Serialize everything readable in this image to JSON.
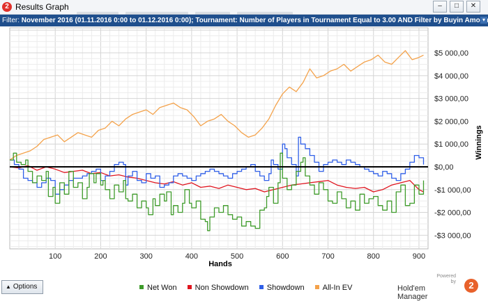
{
  "window": {
    "title": "Results Graph",
    "minimize_glyph": "–",
    "maximize_glyph": "□",
    "close_glyph": "✕"
  },
  "filter": {
    "label": "Filter:",
    "text": "November 2016 (01.11.2016 0:00 to 01.12.2016 0:00); Tournament: Number of Players in Tournament Equal to 3.00 AND Filter by Buyin Amount Greater T..",
    "toggle_glyph": "▾"
  },
  "footer": {
    "options_label": "Options",
    "options_arrow": "▲",
    "powered_by": [
      "Powered",
      "by"
    ],
    "brand_name": "Hold'em Manager",
    "brand_logo_glyph": "2"
  },
  "colors": {
    "net_won": "#3e9b2a",
    "non_showdown": "#e0141e",
    "showdown": "#2f5fe8",
    "all_in_ev": "#f4a24a",
    "title_bar": "#f3f5f8",
    "filter_bar": "#1f4f8d"
  },
  "chart_data": {
    "type": "line",
    "xlabel": "Hands",
    "ylabel": "Winnings",
    "xlim": [
      0,
      920
    ],
    "ylim": [
      -3600,
      6100
    ],
    "xticks": [
      100,
      200,
      300,
      400,
      500,
      600,
      700,
      800,
      900
    ],
    "xtick_labels": [
      "100",
      "200",
      "300",
      "400",
      "500",
      "600",
      "700",
      "800",
      "900"
    ],
    "yticks": [
      5000,
      4000,
      3000,
      2000,
      1000,
      0,
      -1000,
      -2000,
      -3000
    ],
    "ytick_labels": [
      "$5 000,00",
      "$4 000,00",
      "$3 000,00",
      "$2 000,00",
      "$1 000,00",
      "$0,00",
      "-$1 000,00",
      "-$2 000,00",
      "-$3 000,00"
    ],
    "grid": true,
    "y_axis_position": "right",
    "legend_position": "bottom",
    "series": [
      {
        "name": "Net Won",
        "color": "#3e9b2a",
        "step": true,
        "x": [
          0,
          8,
          15,
          25,
          35,
          40,
          50,
          60,
          70,
          80,
          85,
          95,
          100,
          110,
          120,
          130,
          140,
          150,
          160,
          170,
          175,
          185,
          190,
          200,
          205,
          210,
          220,
          230,
          240,
          250,
          255,
          260,
          270,
          280,
          290,
          300,
          305,
          315,
          320,
          330,
          340,
          345,
          355,
          360,
          370,
          380,
          385,
          395,
          400,
          410,
          420,
          430,
          435,
          440,
          450,
          460,
          470,
          480,
          490,
          500,
          510,
          520,
          530,
          540,
          550,
          560,
          565,
          570,
          580,
          590,
          595,
          600,
          610,
          620,
          630,
          640,
          645,
          650,
          660,
          670,
          680,
          690,
          700,
          710,
          720,
          730,
          740,
          750,
          760,
          770,
          780,
          790,
          800,
          810,
          820,
          830,
          840,
          850,
          860,
          870,
          880,
          890,
          900,
          910
        ],
        "y": [
          300,
          600,
          200,
          100,
          300,
          -200,
          -700,
          -400,
          -600,
          -200,
          -1300,
          -900,
          -1600,
          -700,
          -1200,
          -200,
          -900,
          -700,
          -1400,
          -900,
          -300,
          -700,
          -300,
          -800,
          -600,
          -1000,
          -1400,
          -800,
          -1100,
          -600,
          -1400,
          -1500,
          -1200,
          -1800,
          -1500,
          -1800,
          -2100,
          -1400,
          -1700,
          -1200,
          -1500,
          -1100,
          -2100,
          -1700,
          -2000,
          -1600,
          -1000,
          -1600,
          -1800,
          -1500,
          -2300,
          -2400,
          -2800,
          -2200,
          -1800,
          -2000,
          -1700,
          -2100,
          -2300,
          -2200,
          -2600,
          -2400,
          -2600,
          -2700,
          -1900,
          -1800,
          -1300,
          -900,
          -1600,
          -700,
          600,
          -500,
          -1000,
          -800,
          -200,
          200,
          400,
          -400,
          -800,
          -1200,
          -700,
          -1000,
          -1500,
          -1600,
          -1100,
          -1400,
          -1800,
          -1500,
          -1900,
          -1200,
          -1600,
          -1400,
          -1300,
          -1700,
          -1900,
          -1500,
          -2000,
          -1100,
          -800,
          -1700,
          -1600,
          -800,
          -1200,
          -600
        ]
      },
      {
        "name": "Non Showdown",
        "color": "#e0141e",
        "step": false,
        "x": [
          0,
          20,
          40,
          60,
          80,
          100,
          120,
          140,
          160,
          180,
          200,
          220,
          240,
          260,
          280,
          300,
          320,
          340,
          360,
          380,
          400,
          420,
          440,
          460,
          480,
          500,
          520,
          540,
          560,
          580,
          600,
          620,
          640,
          660,
          680,
          700,
          720,
          740,
          760,
          780,
          800,
          820,
          840,
          860,
          880,
          900,
          910
        ],
        "y": [
          0,
          -50,
          50,
          -150,
          0,
          -100,
          -250,
          -200,
          -150,
          -300,
          -250,
          -400,
          -350,
          -450,
          -500,
          -600,
          -700,
          -750,
          -650,
          -800,
          -700,
          -900,
          -850,
          -950,
          -800,
          -900,
          -1000,
          -950,
          -1100,
          -1000,
          -900,
          -800,
          -750,
          -700,
          -650,
          -600,
          -800,
          -900,
          -950,
          -900,
          -1100,
          -1000,
          -800,
          -700,
          -600,
          -1000,
          -1100
        ]
      },
      {
        "name": "Showdown",
        "color": "#2f5fe8",
        "step": true,
        "x": [
          0,
          10,
          20,
          30,
          40,
          50,
          60,
          70,
          80,
          90,
          100,
          110,
          120,
          130,
          140,
          150,
          160,
          170,
          180,
          190,
          200,
          210,
          220,
          230,
          240,
          250,
          255,
          260,
          270,
          280,
          290,
          300,
          310,
          320,
          330,
          340,
          350,
          360,
          370,
          380,
          390,
          400,
          410,
          420,
          430,
          440,
          450,
          460,
          470,
          480,
          490,
          500,
          510,
          520,
          530,
          540,
          550,
          560,
          570,
          575,
          580,
          590,
          600,
          605,
          610,
          620,
          630,
          635,
          640,
          650,
          660,
          670,
          680,
          690,
          700,
          710,
          720,
          730,
          740,
          750,
          760,
          770,
          780,
          790,
          800,
          810,
          820,
          830,
          840,
          850,
          860,
          870,
          880,
          890,
          900,
          910
        ],
        "y": [
          300,
          100,
          -100,
          -500,
          -600,
          -700,
          -900,
          -700,
          -500,
          -600,
          -1200,
          -1000,
          -800,
          -600,
          -500,
          -500,
          -400,
          -300,
          -200,
          -100,
          -600,
          -400,
          -200,
          100,
          200,
          100,
          -800,
          -400,
          -200,
          -600,
          -700,
          -300,
          -500,
          -400,
          -900,
          -800,
          -700,
          -400,
          -300,
          -400,
          -500,
          -600,
          -400,
          -300,
          -200,
          -100,
          -200,
          -300,
          -400,
          -500,
          -300,
          -200,
          -100,
          0,
          100,
          -200,
          -400,
          -600,
          -300,
          300,
          100,
          -100,
          1000,
          800,
          400,
          100,
          -400,
          1300,
          1000,
          800,
          500,
          200,
          -200,
          100,
          200,
          300,
          200,
          100,
          300,
          200,
          100,
          0,
          -100,
          -200,
          -300,
          -400,
          -200,
          -300,
          -500,
          -600,
          -300,
          -100,
          200,
          500,
          400,
          100
        ]
      },
      {
        "name": "All-In EV",
        "color": "#f4a24a",
        "step": false,
        "x": [
          0,
          15,
          30,
          45,
          60,
          75,
          90,
          105,
          120,
          135,
          150,
          165,
          180,
          195,
          210,
          225,
          240,
          255,
          270,
          285,
          300,
          315,
          330,
          345,
          360,
          375,
          390,
          405,
          420,
          435,
          450,
          465,
          480,
          495,
          510,
          525,
          540,
          555,
          570,
          585,
          600,
          615,
          630,
          645,
          660,
          675,
          690,
          705,
          720,
          735,
          750,
          765,
          780,
          795,
          810,
          825,
          840,
          855,
          870,
          885,
          900,
          910
        ],
        "y": [
          300,
          500,
          600,
          700,
          900,
          1200,
          1300,
          1400,
          1100,
          1300,
          1500,
          1400,
          1300,
          1600,
          1700,
          2000,
          1800,
          2100,
          2300,
          2400,
          2500,
          2300,
          2600,
          2700,
          2800,
          2600,
          2500,
          2200,
          1800,
          2000,
          2100,
          2300,
          2000,
          1800,
          1500,
          1300,
          1400,
          1700,
          2100,
          2700,
          3200,
          3500,
          3300,
          3700,
          4300,
          3900,
          4000,
          4200,
          4300,
          4500,
          4200,
          4400,
          4600,
          4700,
          4900,
          4600,
          4500,
          4800,
          5100,
          4700,
          4800,
          4900
        ]
      }
    ]
  }
}
